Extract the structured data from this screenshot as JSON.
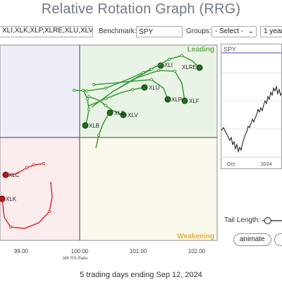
{
  "title": "Relative Rotation Graph (RRG)",
  "toolbar": {
    "symbols_value": "XLI,XLK,XLP,XLRE,XLU,XLV,XL",
    "benchmark_label": "Benchmark:",
    "benchmark_value": "SPY",
    "groups_label": "Groups:",
    "groups_value": "- Select -",
    "period_value": "1 year"
  },
  "quadrants": {
    "leading": "Leading",
    "weakening": "Weakening"
  },
  "colors": {
    "leading_bg": "#eaf4e6",
    "improving_bg": "#eeeef8",
    "lagging_bg": "#fbeced",
    "weakening_bg": "#fbf8ec",
    "green": "#3a9a3a",
    "red": "#d93030",
    "leading_text": "#6aaa5a",
    "weakening_text": "#e0b040"
  },
  "axis": {
    "xlabel": "JdK RS-Ratio",
    "x_ticks": [
      "99.00",
      "100.00",
      "101.00",
      "102.00"
    ]
  },
  "tails": [
    {
      "label": "XLI",
      "color": "green"
    },
    {
      "label": "XLRE",
      "color": "green"
    },
    {
      "label": "XLU",
      "color": "green"
    },
    {
      "label": "XLP",
      "color": "green"
    },
    {
      "label": "XLF",
      "color": "green"
    },
    {
      "label": "XLV",
      "color": "green"
    },
    {
      "label": "XLB",
      "color": "green"
    },
    {
      "label": "XLE",
      "color": "green"
    },
    {
      "label": "XLC",
      "color": "red"
    },
    {
      "label": "XLK",
      "color": "red"
    }
  ],
  "side_chart": {
    "symbol": "SPY",
    "x_ticks": [
      "Oct",
      "2024"
    ]
  },
  "controls": {
    "tail_length_label": "Tail Length:",
    "tail_length_value": 0.15,
    "animate_label": "animate"
  },
  "footer": "5 trading days ending Sep 12, 2024"
}
